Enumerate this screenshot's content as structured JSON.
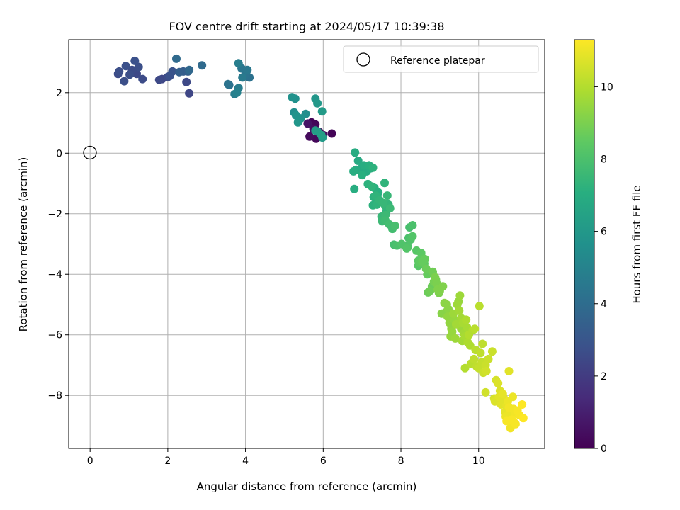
{
  "chart_data": {
    "type": "scatter",
    "title": "FOV centre drift starting at 2024/05/17 10:39:38",
    "xlabel": "Angular distance from reference (arcmin)",
    "ylabel": "Rotation from reference (arcmin)",
    "xlim": [
      -0.55,
      11.7
    ],
    "ylim": [
      -9.75,
      3.75
    ],
    "xticks": [
      0,
      2,
      4,
      6,
      8,
      10
    ],
    "yticks": [
      -8,
      -6,
      -4,
      -2,
      0,
      2
    ],
    "grid": true,
    "legend": {
      "position": "top-right",
      "entries": [
        "Reference platepar"
      ]
    },
    "reference_point": {
      "x": 0,
      "y": 0
    },
    "colorbar": {
      "label": "Hours from first FF file",
      "min": 0,
      "max": 11.3,
      "ticks": [
        0,
        2,
        4,
        6,
        8,
        10
      ],
      "colormap": "viridis"
    },
    "points": [
      [
        5.7,
        1.02,
        0.1
      ],
      [
        5.8,
        0.95,
        0.2
      ],
      [
        5.9,
        0.7,
        0.3
      ],
      [
        6.0,
        0.6,
        0.4
      ],
      [
        5.65,
        0.55,
        0.3
      ],
      [
        5.82,
        0.48,
        0.2
      ],
      [
        6.22,
        0.65,
        0.1
      ],
      [
        5.75,
        0.8,
        0.5
      ],
      [
        5.6,
        0.98,
        0.6
      ],
      [
        0.72,
        2.62,
        2.6
      ],
      [
        0.75,
        2.7,
        2.7
      ],
      [
        0.88,
        2.38,
        2.7
      ],
      [
        0.92,
        2.88,
        2.8
      ],
      [
        1.02,
        2.6,
        2.7
      ],
      [
        1.08,
        2.75,
        2.6
      ],
      [
        1.15,
        3.05,
        2.8
      ],
      [
        1.2,
        2.62,
        2.5
      ],
      [
        1.25,
        2.85,
        2.7
      ],
      [
        1.35,
        2.45,
        2.6
      ],
      [
        1.78,
        2.42,
        2.5
      ],
      [
        1.85,
        2.45,
        2.4
      ],
      [
        2.0,
        2.52,
        2.6
      ],
      [
        2.05,
        2.55,
        2.8
      ],
      [
        2.12,
        2.7,
        2.9
      ],
      [
        2.22,
        3.12,
        3.9
      ],
      [
        2.3,
        2.68,
        3.4
      ],
      [
        2.4,
        2.7,
        3.3
      ],
      [
        2.48,
        2.35,
        2.5
      ],
      [
        2.52,
        2.7,
        3.4
      ],
      [
        2.55,
        2.75,
        3.8
      ],
      [
        2.55,
        1.98,
        2.4
      ],
      [
        2.88,
        2.9,
        3.9
      ],
      [
        3.55,
        2.28,
        4.3
      ],
      [
        3.58,
        2.25,
        4.2
      ],
      [
        3.72,
        1.95,
        4.8
      ],
      [
        3.78,
        2.0,
        4.9
      ],
      [
        3.82,
        2.15,
        4.7
      ],
      [
        3.82,
        2.97,
        4.8
      ],
      [
        3.9,
        2.8,
        4.4
      ],
      [
        3.92,
        2.5,
        4.6
      ],
      [
        4.0,
        2.6,
        4.3
      ],
      [
        4.05,
        2.75,
        4.5
      ],
      [
        4.1,
        2.5,
        4.2
      ],
      [
        5.2,
        1.85,
        5.7
      ],
      [
        5.28,
        1.8,
        5.6
      ],
      [
        5.25,
        1.35,
        5.5
      ],
      [
        5.3,
        1.25,
        5.8
      ],
      [
        5.35,
        1.02,
        5.9
      ],
      [
        5.42,
        1.15,
        5.7
      ],
      [
        5.55,
        1.3,
        5.5
      ],
      [
        5.8,
        1.8,
        5.9
      ],
      [
        5.85,
        1.65,
        6.0
      ],
      [
        5.97,
        1.38,
        6.1
      ],
      [
        5.85,
        0.72,
        6.2
      ],
      [
        5.95,
        0.6,
        6.3
      ],
      [
        5.98,
        0.52,
        6.1
      ],
      [
        5.8,
        0.75,
        6.2
      ],
      [
        6.82,
        0.02,
        6.9
      ],
      [
        6.9,
        -0.25,
        6.8
      ],
      [
        6.78,
        -0.6,
        7.0
      ],
      [
        6.85,
        -0.55,
        6.9
      ],
      [
        6.8,
        -1.18,
        7.0
      ],
      [
        6.98,
        -0.5,
        6.8
      ],
      [
        7.0,
        -0.72,
        7.1
      ],
      [
        7.05,
        -0.4,
        7.0
      ],
      [
        7.12,
        -0.6,
        6.9
      ],
      [
        7.18,
        -0.4,
        7.1
      ],
      [
        7.22,
        -0.5,
        7.0
      ],
      [
        7.28,
        -0.48,
        7.2
      ],
      [
        7.15,
        -1.02,
        7.2
      ],
      [
        7.25,
        -1.1,
        7.3
      ],
      [
        7.32,
        -1.15,
        7.1
      ],
      [
        7.3,
        -1.45,
        7.2
      ],
      [
        7.35,
        -1.4,
        7.3
      ],
      [
        7.42,
        -1.3,
        7.1
      ],
      [
        7.45,
        -1.55,
        7.4
      ],
      [
        7.28,
        -1.72,
        7.2
      ],
      [
        7.38,
        -1.7,
        7.3
      ],
      [
        7.55,
        -1.65,
        7.5
      ],
      [
        7.6,
        -1.75,
        7.4
      ],
      [
        7.62,
        -1.95,
        7.3
      ],
      [
        7.65,
        -1.4,
        7.5
      ],
      [
        7.68,
        -1.7,
        7.4
      ],
      [
        7.72,
        -1.82,
        7.6
      ],
      [
        7.58,
        -0.98,
        7.3
      ],
      [
        7.5,
        -2.1,
        7.5
      ],
      [
        7.52,
        -2.25,
        7.6
      ],
      [
        7.6,
        -2.22,
        7.7
      ],
      [
        7.7,
        -2.35,
        7.8
      ],
      [
        7.85,
        -2.4,
        7.9
      ],
      [
        7.6,
        -2.05,
        7.6
      ],
      [
        7.78,
        -2.5,
        7.8
      ],
      [
        7.82,
        -3.02,
        7.9
      ],
      [
        7.9,
        -3.05,
        8.0
      ],
      [
        8.02,
        -3.0,
        8.1
      ],
      [
        8.1,
        -3.05,
        8.0
      ],
      [
        8.18,
        -3.1,
        8.1
      ],
      [
        8.15,
        -3.15,
        8.2
      ],
      [
        8.2,
        -2.8,
        8.0
      ],
      [
        8.25,
        -2.85,
        8.1
      ],
      [
        8.3,
        -2.75,
        8.2
      ],
      [
        8.3,
        -2.38,
        8.0
      ],
      [
        8.22,
        -2.45,
        7.9
      ],
      [
        8.4,
        -3.22,
        8.3
      ],
      [
        8.45,
        -3.55,
        8.4
      ],
      [
        8.45,
        -3.72,
        8.3
      ],
      [
        8.48,
        -3.62,
        8.5
      ],
      [
        8.52,
        -3.3,
        8.4
      ],
      [
        8.55,
        -3.58,
        8.6
      ],
      [
        8.6,
        -3.65,
        8.5
      ],
      [
        8.62,
        -3.5,
        8.6
      ],
      [
        8.65,
        -3.82,
        8.7
      ],
      [
        8.58,
        -3.48,
        8.5
      ],
      [
        8.68,
        -4.0,
        8.6
      ],
      [
        8.7,
        -4.6,
        8.7
      ],
      [
        8.75,
        -4.55,
        8.8
      ],
      [
        8.8,
        -4.4,
        8.7
      ],
      [
        8.82,
        -3.92,
        8.8
      ],
      [
        8.85,
        -4.25,
        8.9
      ],
      [
        8.88,
        -4.1,
        9.0
      ],
      [
        8.9,
        -4.18,
        8.9
      ],
      [
        8.92,
        -4.3,
        9.0
      ],
      [
        8.95,
        -4.5,
        9.1
      ],
      [
        8.98,
        -4.62,
        9.0
      ],
      [
        9.0,
        -4.55,
        9.1
      ],
      [
        9.05,
        -5.3,
        9.2
      ],
      [
        9.08,
        -4.4,
        9.1
      ],
      [
        9.12,
        -4.95,
        9.3
      ],
      [
        9.15,
        -5.25,
        9.2
      ],
      [
        9.18,
        -5.0,
        9.3
      ],
      [
        9.2,
        -5.4,
        9.4
      ],
      [
        9.22,
        -5.15,
        9.3
      ],
      [
        9.25,
        -5.6,
        9.4
      ],
      [
        9.28,
        -6.05,
        9.5
      ],
      [
        9.3,
        -5.8,
        9.4
      ],
      [
        9.32,
        -5.9,
        9.5
      ],
      [
        9.35,
        -5.3,
        9.6
      ],
      [
        9.38,
        -5.5,
        9.5
      ],
      [
        9.4,
        -6.12,
        9.6
      ],
      [
        9.42,
        -5.65,
        9.7
      ],
      [
        9.45,
        -5.0,
        9.6
      ],
      [
        9.48,
        -4.9,
        9.5
      ],
      [
        9.5,
        -5.2,
        9.7
      ],
      [
        9.52,
        -4.7,
        9.6
      ],
      [
        9.55,
        -5.45,
        9.7
      ],
      [
        9.55,
        -5.8,
        9.6
      ],
      [
        9.58,
        -6.2,
        9.7
      ],
      [
        9.6,
        -5.6,
        9.8
      ],
      [
        9.62,
        -5.95,
        9.7
      ],
      [
        9.65,
        -6.05,
        9.8
      ],
      [
        9.68,
        -5.5,
        9.9
      ],
      [
        9.7,
        -5.75,
        9.8
      ],
      [
        9.72,
        -6.25,
        9.9
      ],
      [
        9.75,
        -6.0,
        10.0
      ],
      [
        9.78,
        -6.35,
        9.9
      ],
      [
        9.85,
        -5.85,
        10.0
      ],
      [
        9.9,
        -5.8,
        10.1
      ],
      [
        9.65,
        -7.1,
        10.0
      ],
      [
        9.8,
        -6.95,
        10.1
      ],
      [
        9.88,
        -6.8,
        10.2
      ],
      [
        9.92,
        -6.5,
        10.1
      ],
      [
        9.95,
        -7.05,
        10.2
      ],
      [
        10.0,
        -7.1,
        10.3
      ],
      [
        10.02,
        -5.05,
        10.1
      ],
      [
        10.05,
        -6.6,
        10.2
      ],
      [
        10.08,
        -6.9,
        10.3
      ],
      [
        10.1,
        -6.3,
        10.2
      ],
      [
        10.12,
        -7.25,
        10.4
      ],
      [
        10.15,
        -6.95,
        10.3
      ],
      [
        10.18,
        -7.0,
        10.4
      ],
      [
        10.2,
        -7.2,
        10.5
      ],
      [
        10.25,
        -6.8,
        10.4
      ],
      [
        10.18,
        -7.9,
        10.5
      ],
      [
        10.35,
        -6.55,
        10.4
      ],
      [
        10.4,
        -8.1,
        10.6
      ],
      [
        10.42,
        -8.2,
        10.7
      ],
      [
        10.45,
        -7.5,
        10.6
      ],
      [
        10.5,
        -7.6,
        10.7
      ],
      [
        10.52,
        -8.05,
        10.8
      ],
      [
        10.55,
        -7.85,
        10.7
      ],
      [
        10.58,
        -8.3,
        10.8
      ],
      [
        10.62,
        -7.95,
        10.9
      ],
      [
        10.65,
        -8.1,
        10.8
      ],
      [
        10.68,
        -8.55,
        10.9
      ],
      [
        10.7,
        -8.7,
        11.0
      ],
      [
        10.72,
        -8.35,
        10.9
      ],
      [
        10.75,
        -8.2,
        11.0
      ],
      [
        10.78,
        -8.4,
        11.1
      ],
      [
        10.78,
        -7.2,
        10.8
      ],
      [
        10.8,
        -8.6,
        11.0
      ],
      [
        10.82,
        -9.08,
        11.1
      ],
      [
        10.85,
        -8.8,
        11.2
      ],
      [
        10.88,
        -8.05,
        11.0
      ],
      [
        10.9,
        -8.45,
        11.1
      ],
      [
        10.92,
        -8.9,
        11.2
      ],
      [
        10.95,
        -8.6,
        11.1
      ],
      [
        11.0,
        -8.5,
        11.2
      ],
      [
        11.05,
        -8.65,
        11.2
      ],
      [
        11.12,
        -8.3,
        11.3
      ],
      [
        11.15,
        -8.75,
        11.3
      ],
      [
        10.72,
        -8.85,
        11.2
      ],
      [
        10.95,
        -8.95,
        11.2
      ]
    ]
  }
}
